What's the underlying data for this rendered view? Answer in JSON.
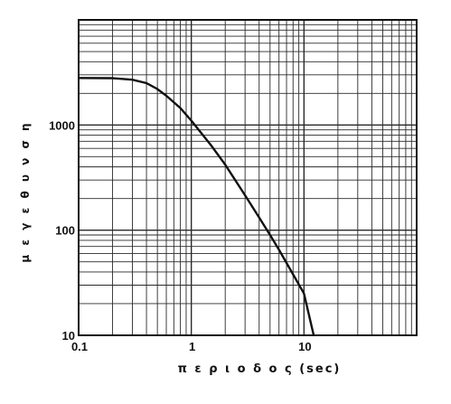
{
  "chart_data": {
    "type": "line",
    "xlabel": "π ε ρ ι ο δ ο ς (sec)",
    "ylabel": "μ ε γ ε θ υ ν σ η",
    "x_scale": "log",
    "y_scale": "log",
    "xlim": [
      0.1,
      100
    ],
    "ylim": [
      10,
      10000
    ],
    "x_ticks": [
      {
        "value": 0.1,
        "label": "0.1"
      },
      {
        "value": 1,
        "label": "1"
      },
      {
        "value": 10,
        "label": "10"
      }
    ],
    "y_ticks": [
      {
        "value": 10,
        "label": "10"
      },
      {
        "value": 100,
        "label": "100"
      },
      {
        "value": 1000,
        "label": "1000"
      }
    ],
    "grid": true,
    "series": [
      {
        "x": [
          0.1,
          0.2,
          0.3,
          0.4,
          0.5,
          0.6,
          0.8,
          1,
          1.5,
          2,
          3,
          4,
          5,
          6,
          8,
          10,
          12.2
        ],
        "y": [
          2800,
          2790,
          2700,
          2500,
          2200,
          1900,
          1450,
          1100,
          640,
          420,
          215,
          132,
          90,
          65,
          38,
          25,
          10
        ]
      }
    ],
    "colors": {
      "line": "#111111",
      "grid": "#2a2a2a",
      "background": "#ffffff"
    }
  }
}
